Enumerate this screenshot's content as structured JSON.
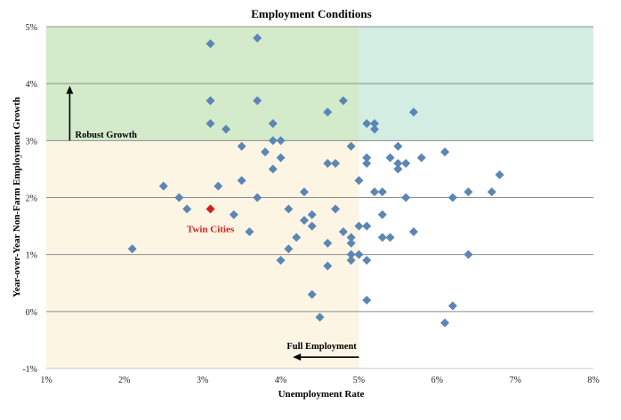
{
  "chart_data": {
    "type": "scatter",
    "title": "Employment Conditions",
    "xlabel": "Unemployment Rate",
    "ylabel": "Year-over-Year Non-Farm Employment Growth",
    "xlim": [
      1,
      8
    ],
    "ylim": [
      -1,
      5
    ],
    "x_ticks": [
      1,
      2,
      3,
      4,
      5,
      6,
      7,
      8
    ],
    "x_tick_labels": [
      "1%",
      "2%",
      "3%",
      "4%",
      "5%",
      "6%",
      "7%",
      "8%"
    ],
    "y_ticks": [
      -1,
      0,
      1,
      2,
      3,
      4,
      5
    ],
    "y_tick_labels": [
      "-1%",
      "0%",
      "1%",
      "2%",
      "3%",
      "4%",
      "5%"
    ],
    "grid": "horizontal",
    "regions": [
      {
        "x": [
          1,
          5
        ],
        "y": [
          3,
          5
        ],
        "color": "#d3eacb"
      },
      {
        "x": [
          5,
          8
        ],
        "y": [
          3,
          5
        ],
        "color": "#d4ede2"
      },
      {
        "x": [
          1,
          5
        ],
        "y": [
          -1,
          3
        ],
        "color": "#fdf5e4"
      }
    ],
    "annotations": [
      {
        "text": "Robust Growth",
        "arrow": "up"
      },
      {
        "text": "Full Employment",
        "arrow": "left"
      }
    ],
    "highlight": {
      "name": "Twin Cities",
      "x": 3.1,
      "y": 1.8,
      "color": "#d42020"
    },
    "point_color": "#5b86b4",
    "points": [
      {
        "x": 3.1,
        "y": 4.7
      },
      {
        "x": 3.7,
        "y": 4.8
      },
      {
        "x": 3.1,
        "y": 3.7
      },
      {
        "x": 3.7,
        "y": 3.7
      },
      {
        "x": 4.8,
        "y": 3.7
      },
      {
        "x": 3.1,
        "y": 3.3
      },
      {
        "x": 3.3,
        "y": 3.2
      },
      {
        "x": 3.9,
        "y": 3.3
      },
      {
        "x": 4.6,
        "y": 3.5
      },
      {
        "x": 5.1,
        "y": 3.3
      },
      {
        "x": 5.2,
        "y": 3.3
      },
      {
        "x": 5.2,
        "y": 3.2
      },
      {
        "x": 5.7,
        "y": 3.5
      },
      {
        "x": 3.5,
        "y": 2.9
      },
      {
        "x": 3.8,
        "y": 2.8
      },
      {
        "x": 3.9,
        "y": 3.0
      },
      {
        "x": 4.0,
        "y": 3.0
      },
      {
        "x": 4.0,
        "y": 2.7
      },
      {
        "x": 3.9,
        "y": 2.5
      },
      {
        "x": 4.6,
        "y": 2.6
      },
      {
        "x": 4.7,
        "y": 2.6
      },
      {
        "x": 4.9,
        "y": 2.9
      },
      {
        "x": 5.1,
        "y": 2.7
      },
      {
        "x": 5.1,
        "y": 2.6
      },
      {
        "x": 5.0,
        "y": 2.3
      },
      {
        "x": 5.4,
        "y": 2.7
      },
      {
        "x": 5.5,
        "y": 2.9
      },
      {
        "x": 5.5,
        "y": 2.6
      },
      {
        "x": 5.5,
        "y": 2.5
      },
      {
        "x": 5.6,
        "y": 2.6
      },
      {
        "x": 5.8,
        "y": 2.7
      },
      {
        "x": 6.1,
        "y": 2.8
      },
      {
        "x": 6.8,
        "y": 2.4
      },
      {
        "x": 2.5,
        "y": 2.2
      },
      {
        "x": 2.7,
        "y": 2.0
      },
      {
        "x": 2.8,
        "y": 1.8
      },
      {
        "x": 3.2,
        "y": 2.2
      },
      {
        "x": 3.5,
        "y": 2.3
      },
      {
        "x": 3.7,
        "y": 2.0
      },
      {
        "x": 3.4,
        "y": 1.7
      },
      {
        "x": 3.6,
        "y": 1.4
      },
      {
        "x": 4.1,
        "y": 1.8
      },
      {
        "x": 4.3,
        "y": 2.1
      },
      {
        "x": 4.3,
        "y": 1.6
      },
      {
        "x": 4.4,
        "y": 1.7
      },
      {
        "x": 4.4,
        "y": 1.5
      },
      {
        "x": 4.7,
        "y": 1.8
      },
      {
        "x": 4.2,
        "y": 1.3
      },
      {
        "x": 4.1,
        "y": 1.1
      },
      {
        "x": 4.0,
        "y": 0.9
      },
      {
        "x": 4.6,
        "y": 1.2
      },
      {
        "x": 4.8,
        "y": 1.4
      },
      {
        "x": 4.9,
        "y": 1.3
      },
      {
        "x": 4.9,
        "y": 1.2
      },
      {
        "x": 4.9,
        "y": 1.0
      },
      {
        "x": 4.9,
        "y": 0.9
      },
      {
        "x": 4.6,
        "y": 0.8
      },
      {
        "x": 4.4,
        "y": 0.3
      },
      {
        "x": 4.5,
        "y": -0.1
      },
      {
        "x": 5.0,
        "y": 1.5
      },
      {
        "x": 5.1,
        "y": 1.5
      },
      {
        "x": 5.2,
        "y": 2.1
      },
      {
        "x": 5.3,
        "y": 2.1
      },
      {
        "x": 5.3,
        "y": 1.7
      },
      {
        "x": 5.3,
        "y": 1.3
      },
      {
        "x": 5.4,
        "y": 1.3
      },
      {
        "x": 5.6,
        "y": 2.0
      },
      {
        "x": 5.7,
        "y": 1.4
      },
      {
        "x": 5.0,
        "y": 1.0
      },
      {
        "x": 5.1,
        "y": 0.9
      },
      {
        "x": 5.1,
        "y": 0.2
      },
      {
        "x": 6.2,
        "y": 2.0
      },
      {
        "x": 6.4,
        "y": 2.1
      },
      {
        "x": 6.7,
        "y": 2.1
      },
      {
        "x": 6.4,
        "y": 1.0
      },
      {
        "x": 6.2,
        "y": 0.1
      },
      {
        "x": 6.1,
        "y": -0.2
      },
      {
        "x": 2.1,
        "y": 1.1
      }
    ]
  }
}
